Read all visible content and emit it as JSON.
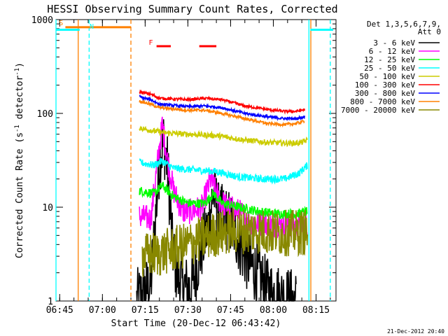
{
  "chart_data": {
    "type": "line",
    "title": "HESSI Observing Summary Count Rates, Corrected",
    "xlabel": "Start Time (20-Dec-12 06:43:42)",
    "ylabel_parts": [
      "Corrected Count Rate (s",
      "-1",
      " detector",
      "-1",
      ")"
    ],
    "y_scale": "log",
    "ylim": [
      1,
      1000
    ],
    "xlim": [
      "06:43:42",
      "08:22:00"
    ],
    "y_ticks": [
      {
        "value": 1,
        "label": "1"
      },
      {
        "value": 10,
        "label": "10"
      },
      {
        "value": 100,
        "label": "100"
      },
      {
        "value": 1000,
        "label": "1000"
      }
    ],
    "x_ticks": [
      {
        "time": "06:45",
        "label": "06:45"
      },
      {
        "time": "07:00",
        "label": "07:00"
      },
      {
        "time": "07:15",
        "label": "07:15"
      },
      {
        "time": "07:30",
        "label": "07:30"
      },
      {
        "time": "07:45",
        "label": "07:45"
      },
      {
        "time": "08:00",
        "label": "08:00"
      },
      {
        "time": "08:15",
        "label": "08:15"
      }
    ],
    "legend_header": [
      "Det 1,3,5,6,7,9,",
      "Att 0"
    ],
    "legend_position": "right",
    "series": [
      {
        "name": "3 - 6 keV",
        "color": "#000000",
        "noise": 0.35,
        "points": [
          [
            "07:12:00",
            1
          ],
          [
            "07:17:00",
            1.5
          ],
          [
            "07:20:00",
            30
          ],
          [
            "07:21:30",
            50
          ],
          [
            "07:23:00",
            25
          ],
          [
            "07:24:30",
            4
          ],
          [
            "07:26:00",
            2
          ],
          [
            "07:28:00",
            1.5
          ],
          [
            "07:31:00",
            1.3
          ],
          [
            "07:34:00",
            3
          ],
          [
            "07:37:00",
            6
          ],
          [
            "07:39:00",
            15
          ],
          [
            "07:41:00",
            8
          ],
          [
            "07:43:00",
            8
          ],
          [
            "07:46:00",
            6
          ],
          [
            "07:50:00",
            3
          ],
          [
            "07:54:00",
            2
          ],
          [
            "07:58:00",
            1.3
          ],
          [
            "08:03:00",
            1.1
          ],
          [
            "08:08:00",
            1
          ]
        ]
      },
      {
        "name": "6 - 12 keV",
        "color": "#ff00ff",
        "noise": 0.14,
        "points": [
          [
            "07:13:00",
            8
          ],
          [
            "07:17:00",
            7.5
          ],
          [
            "07:19:00",
            25
          ],
          [
            "07:21:00",
            75
          ],
          [
            "07:23:00",
            30
          ],
          [
            "07:25:00",
            15
          ],
          [
            "07:28:00",
            9
          ],
          [
            "07:31:00",
            9
          ],
          [
            "07:35:00",
            10
          ],
          [
            "07:38:00",
            20
          ],
          [
            "07:41:00",
            12
          ],
          [
            "07:44:00",
            10
          ],
          [
            "07:48:00",
            9
          ],
          [
            "07:52:00",
            7
          ],
          [
            "07:58:00",
            6.5
          ],
          [
            "08:05:00",
            6.5
          ],
          [
            "08:10:00",
            6.5
          ],
          [
            "08:12:00",
            6
          ]
        ]
      },
      {
        "name": "12 - 25 keV",
        "color": "#00ff00",
        "noise": 0.05,
        "points": [
          [
            "07:13:00",
            15
          ],
          [
            "07:18:00",
            14
          ],
          [
            "07:21:00",
            17
          ],
          [
            "07:25:00",
            13
          ],
          [
            "07:30:00",
            11
          ],
          [
            "07:36:00",
            11
          ],
          [
            "07:39:00",
            14
          ],
          [
            "07:42:00",
            11
          ],
          [
            "07:48:00",
            10
          ],
          [
            "07:55:00",
            9
          ],
          [
            "08:02:00",
            8.5
          ],
          [
            "08:08:00",
            8.5
          ],
          [
            "08:12:00",
            9
          ]
        ]
      },
      {
        "name": "25 - 50 keV",
        "color": "#00ffff",
        "noise": 0.04,
        "points": [
          [
            "07:13:00",
            30
          ],
          [
            "07:18:00",
            28
          ],
          [
            "07:21:00",
            31
          ],
          [
            "07:25:00",
            26
          ],
          [
            "07:32:00",
            25
          ],
          [
            "07:40:00",
            24
          ],
          [
            "07:48:00",
            21
          ],
          [
            "07:56:00",
            20
          ],
          [
            "08:04:00",
            20
          ],
          [
            "08:09:00",
            23
          ],
          [
            "08:12:00",
            28
          ]
        ]
      },
      {
        "name": "50 - 100 keV",
        "color": "#cccc00",
        "noise": 0.03,
        "points": [
          [
            "07:13:00",
            70
          ],
          [
            "07:18:00",
            65
          ],
          [
            "07:22:00",
            62
          ],
          [
            "07:30:00",
            60
          ],
          [
            "07:40:00",
            58
          ],
          [
            "07:50:00",
            52
          ],
          [
            "07:58:00",
            49
          ],
          [
            "08:06:00",
            48
          ],
          [
            "08:10:00",
            49
          ],
          [
            "08:12:00",
            52
          ]
        ]
      },
      {
        "name": "100 - 300 keV",
        "color": "#ff0000",
        "noise": 0.015,
        "points": [
          [
            "07:13:00",
            170
          ],
          [
            "07:17:00",
            160
          ],
          [
            "07:20:00",
            145
          ],
          [
            "07:30:00",
            140
          ],
          [
            "07:36:00",
            145
          ],
          [
            "07:42:00",
            140
          ],
          [
            "07:50:00",
            120
          ],
          [
            "07:58:00",
            110
          ],
          [
            "08:04:00",
            105
          ],
          [
            "08:08:00",
            105
          ],
          [
            "08:11:00",
            110
          ]
        ]
      },
      {
        "name": "300 - 800 keV",
        "color": "#0000ff",
        "noise": 0.015,
        "points": [
          [
            "07:13:00",
            150
          ],
          [
            "07:17:00",
            140
          ],
          [
            "07:20:00",
            125
          ],
          [
            "07:30:00",
            118
          ],
          [
            "07:36:00",
            120
          ],
          [
            "07:42:00",
            115
          ],
          [
            "07:50:00",
            100
          ],
          [
            "07:58:00",
            92
          ],
          [
            "08:04:00",
            88
          ],
          [
            "08:08:00",
            88
          ],
          [
            "08:11:00",
            92
          ]
        ]
      },
      {
        "name": "800 - 7000 keV",
        "color": "#ff8000",
        "noise": 0.015,
        "points": [
          [
            "07:13:00",
            135
          ],
          [
            "07:17:00",
            125
          ],
          [
            "07:20:00",
            115
          ],
          [
            "07:30:00",
            108
          ],
          [
            "07:36:00",
            108
          ],
          [
            "07:42:00",
            100
          ],
          [
            "07:50:00",
            88
          ],
          [
            "07:58:00",
            78
          ],
          [
            "08:04:00",
            76
          ],
          [
            "08:08:00",
            78
          ],
          [
            "08:11:00",
            83
          ]
        ]
      },
      {
        "name": "7000 - 20000 keV",
        "color": "#888800",
        "noise": 0.25,
        "points": [
          [
            "07:14:00",
            3
          ],
          [
            "07:20:00",
            3.2
          ],
          [
            "07:28:00",
            3.8
          ],
          [
            "07:34:00",
            4.5
          ],
          [
            "07:40:00",
            5.2
          ],
          [
            "07:46:00",
            5.6
          ],
          [
            "07:54:00",
            5.6
          ],
          [
            "08:02:00",
            5.3
          ],
          [
            "08:08:00",
            5.3
          ],
          [
            "08:12:00",
            5.5
          ]
        ]
      }
    ],
    "vertical_markers": [
      {
        "time": "06:43:42",
        "color": "#00ffff",
        "style": "solid"
      },
      {
        "time": "06:51:30",
        "color": "#ff8000",
        "style": "solid"
      },
      {
        "time": "06:55:20",
        "color": "#00ffff",
        "style": "dashed"
      },
      {
        "time": "07:10:00",
        "color": "#ff8000",
        "style": "dashed"
      },
      {
        "time": "08:12:30",
        "color": "#00ffff",
        "style": "solid"
      },
      {
        "time": "08:13:10",
        "color": "#ff8000",
        "style": "solid"
      },
      {
        "time": "08:20:00",
        "color": "#00ffff",
        "style": "dashed"
      }
    ],
    "flag_bars": [
      {
        "label": "S",
        "color": "#ff8000",
        "start": "06:47:00",
        "end": "07:10:00",
        "label_time": "06:45:30",
        "label_value": 870,
        "bar_value": 830
      },
      {
        "label": "N",
        "color": "#00ffff",
        "start": "06:43:42",
        "end": "06:52:00",
        "label_time": "06:55:30",
        "label_value": 800,
        "bar_value": 780,
        "label_side": "right"
      },
      {
        "label": "",
        "color": "#00ffff",
        "start": "08:13:00",
        "end": "08:21:00",
        "bar_value": 780
      },
      {
        "label": "F",
        "color": "#ff0000",
        "start": "07:19:00",
        "end": "07:24:00",
        "label_time": "07:17:00",
        "label_value": 540,
        "bar_value": 520
      },
      {
        "label": "",
        "color": "#ff0000",
        "start": "07:34:00",
        "end": "07:40:00",
        "bar_value": 520
      }
    ],
    "footer_stamp": "21-Dec-2012 20:40"
  }
}
